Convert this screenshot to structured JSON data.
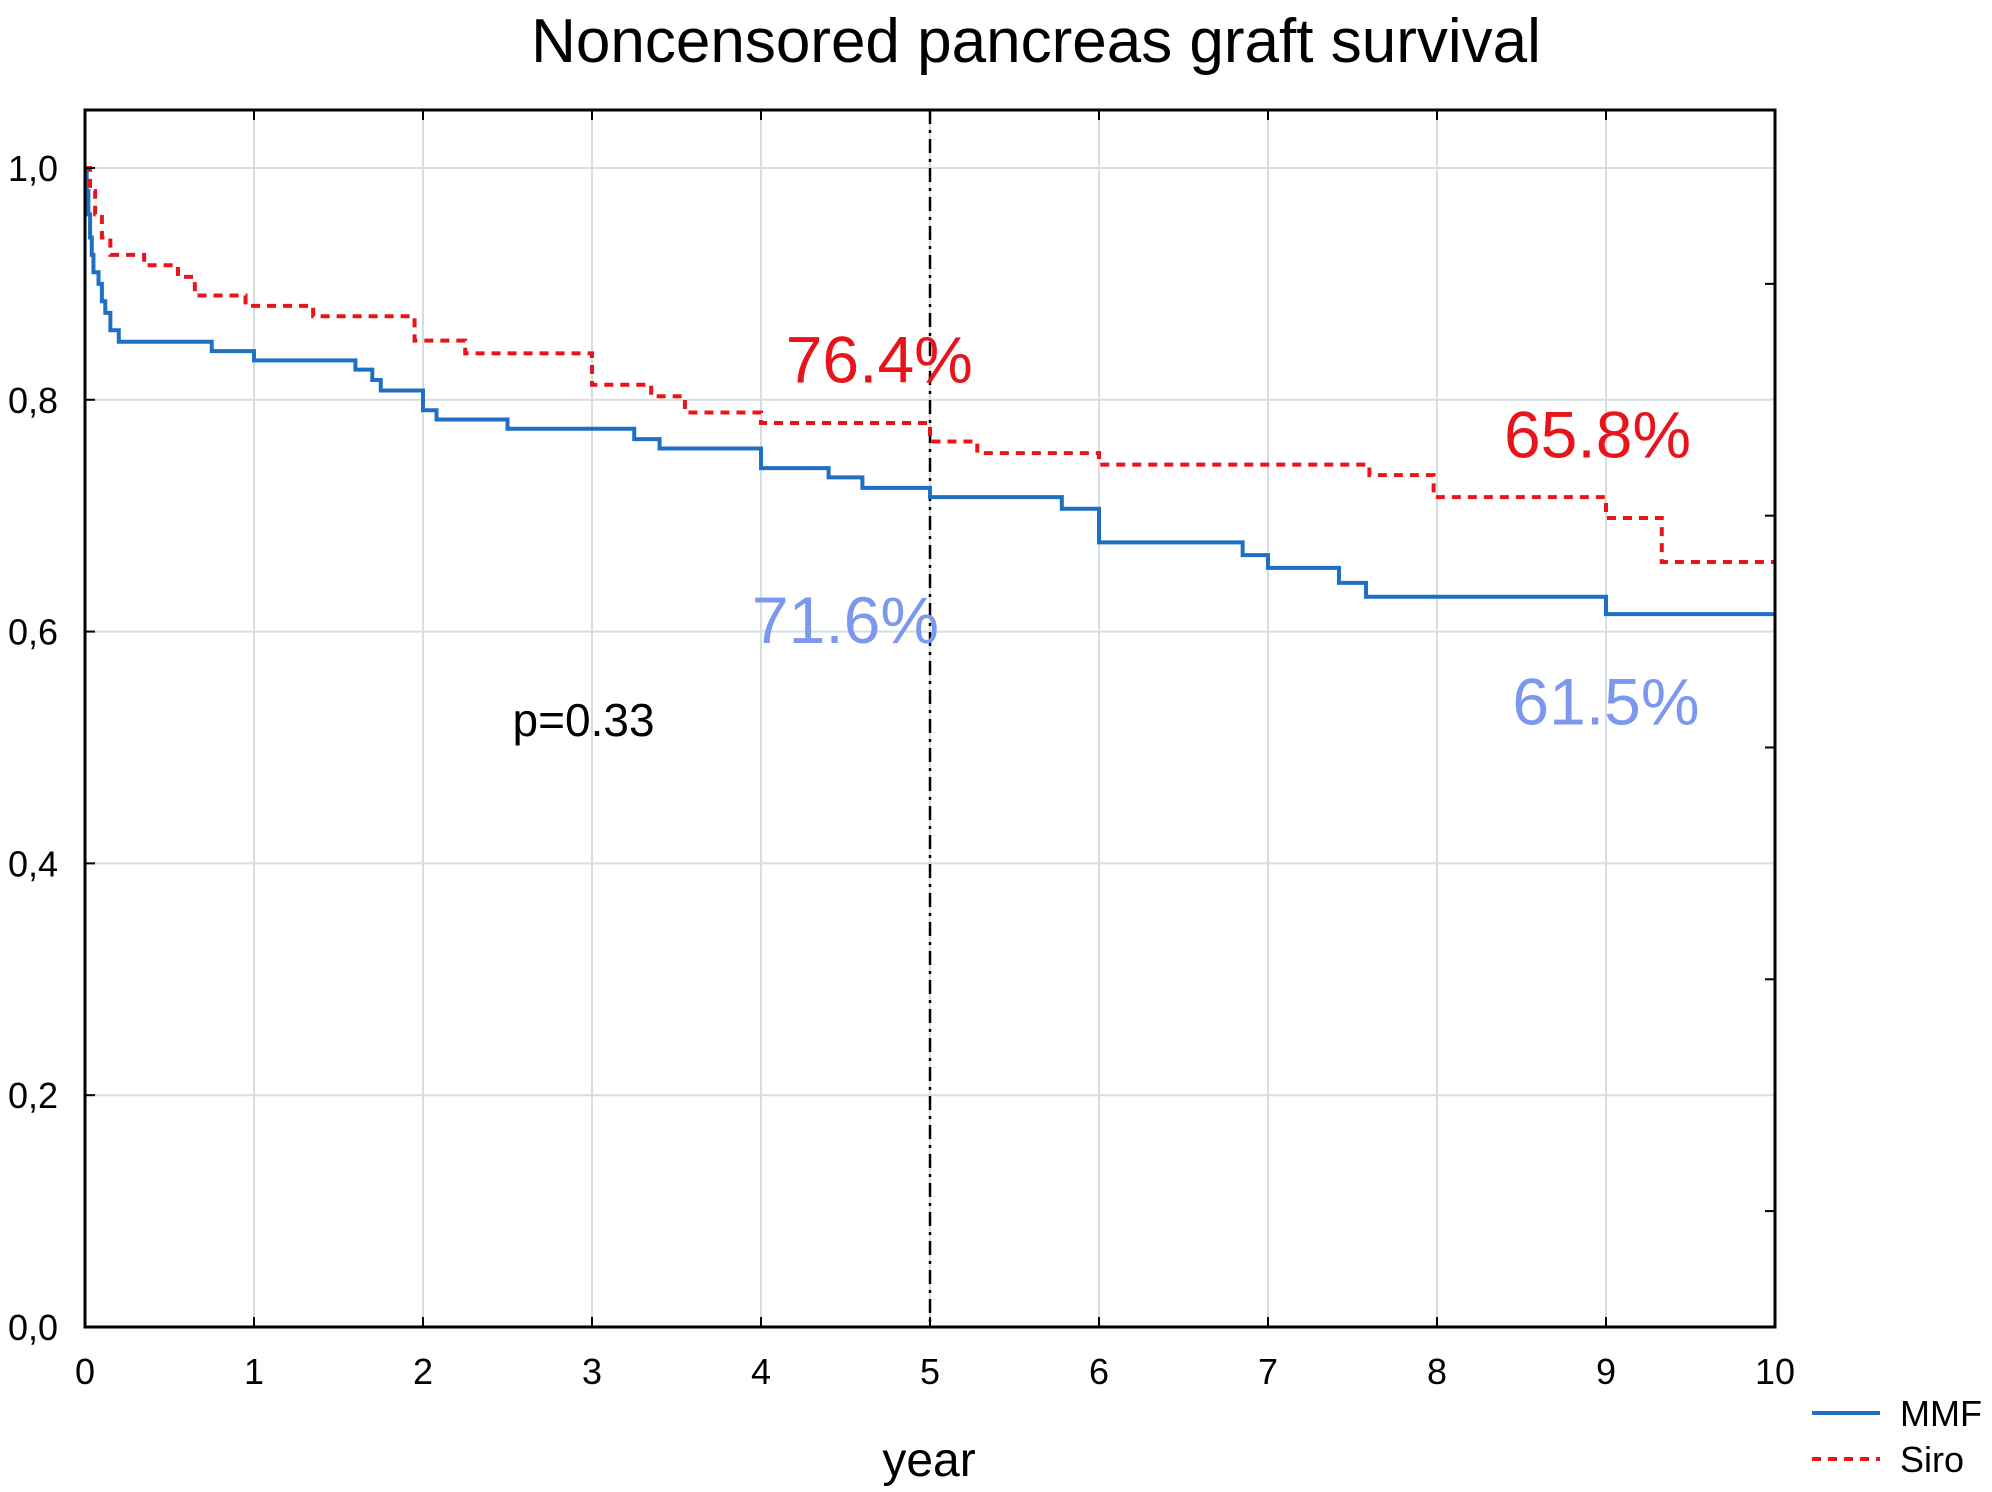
{
  "chart_data": {
    "type": "line",
    "title": "Noncensored pancreas graft survival",
    "xlabel": "year",
    "ylabel": "",
    "xlim": [
      0,
      10
    ],
    "ylim": [
      0,
      1.05
    ],
    "x_ticks": [
      "0",
      "1",
      "2",
      "3",
      "4",
      "5",
      "6",
      "7",
      "8",
      "9",
      "10"
    ],
    "y_ticks": [
      "0,0",
      "0,2",
      "0,4",
      "0,6",
      "0,8",
      "1,0"
    ],
    "grid": true,
    "step": true,
    "legend_position": "bottom-right",
    "reference_line": {
      "x": 5,
      "style": "dash-dot"
    },
    "series": [
      {
        "name": "MMF",
        "color": "#1f6fc4",
        "line_style": "solid",
        "points": [
          [
            0,
            1.0
          ],
          [
            0.01,
            0.98
          ],
          [
            0.02,
            0.96
          ],
          [
            0.03,
            0.94
          ],
          [
            0.04,
            0.925
          ],
          [
            0.05,
            0.91
          ],
          [
            0.08,
            0.9
          ],
          [
            0.1,
            0.885
          ],
          [
            0.12,
            0.875
          ],
          [
            0.15,
            0.86
          ],
          [
            0.2,
            0.85
          ],
          [
            0.75,
            0.842
          ],
          [
            1.0,
            0.834
          ],
          [
            1.6,
            0.826
          ],
          [
            1.7,
            0.817
          ],
          [
            1.75,
            0.808
          ],
          [
            2.0,
            0.791
          ],
          [
            2.08,
            0.783
          ],
          [
            2.5,
            0.775
          ],
          [
            3.25,
            0.766
          ],
          [
            3.4,
            0.758
          ],
          [
            4.0,
            0.741
          ],
          [
            4.4,
            0.733
          ],
          [
            4.6,
            0.724
          ],
          [
            5.0,
            0.716
          ],
          [
            5.78,
            0.706
          ],
          [
            6.0,
            0.677
          ],
          [
            6.85,
            0.666
          ],
          [
            7.0,
            0.655
          ],
          [
            7.42,
            0.642
          ],
          [
            7.58,
            0.63
          ],
          [
            9.0,
            0.615
          ],
          [
            10.0,
            0.615
          ]
        ]
      },
      {
        "name": "Siro",
        "color": "#e8141c",
        "line_style": "dashed",
        "points": [
          [
            0,
            1.0
          ],
          [
            0.03,
            0.98
          ],
          [
            0.06,
            0.96
          ],
          [
            0.1,
            0.94
          ],
          [
            0.15,
            0.925
          ],
          [
            0.35,
            0.916
          ],
          [
            0.55,
            0.906
          ],
          [
            0.65,
            0.89
          ],
          [
            0.95,
            0.881
          ],
          [
            1.35,
            0.872
          ],
          [
            1.95,
            0.851
          ],
          [
            2.25,
            0.84
          ],
          [
            3.0,
            0.813
          ],
          [
            3.35,
            0.803
          ],
          [
            3.55,
            0.789
          ],
          [
            4.0,
            0.78
          ],
          [
            5.0,
            0.764
          ],
          [
            5.28,
            0.754
          ],
          [
            6.0,
            0.744
          ],
          [
            7.6,
            0.735
          ],
          [
            7.98,
            0.716
          ],
          [
            9.0,
            0.698
          ],
          [
            9.33,
            0.66
          ],
          [
            10.0,
            0.66
          ]
        ]
      }
    ],
    "annotations": [
      {
        "text": "76.4%",
        "x": 4.7,
        "y": 0.815,
        "color": "#e8141c"
      },
      {
        "text": "65.8%",
        "x": 8.95,
        "y": 0.75,
        "color": "#e8141c"
      },
      {
        "text": "71.6%",
        "x": 4.5,
        "y": 0.59,
        "color": "#7b98ee"
      },
      {
        "text": "61.5%",
        "x": 9.0,
        "y": 0.52,
        "color": "#7b98ee"
      },
      {
        "text": "p=0.33",
        "x": 2.95,
        "y": 0.51,
        "color": "#000000"
      }
    ]
  }
}
